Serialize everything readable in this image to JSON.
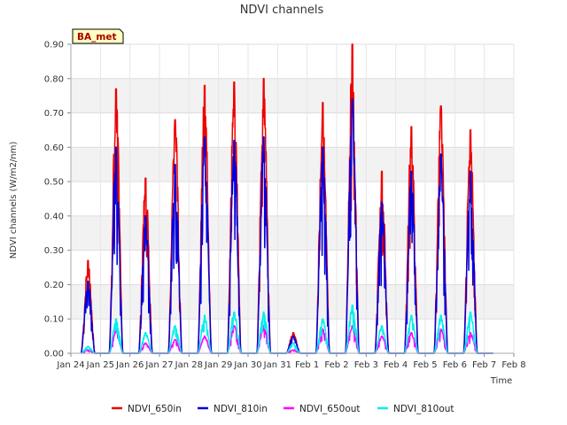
{
  "chart_data": {
    "type": "line",
    "title": "NDVI channels",
    "xlabel": "Time",
    "ylabel": "NDVI channels (W/m2/nm)",
    "ylim": [
      0,
      0.9
    ],
    "xlim": [
      0,
      15
    ],
    "grid": true,
    "y_ticks": [
      "0.00",
      "0.10",
      "0.20",
      "0.30",
      "0.40",
      "0.50",
      "0.60",
      "0.70",
      "0.80",
      "0.90"
    ],
    "x_ticks": [
      "Jan 24",
      "Jan 25",
      "Jan 26",
      "Jan 27",
      "Jan 28",
      "Jan 29",
      "Jan 30",
      "Jan 31",
      "Feb 1",
      "Feb 2",
      "Feb 3",
      "Feb 4",
      "Feb 5",
      "Feb 6",
      "Feb 7",
      "Feb 8"
    ],
    "badge": "BA_met",
    "legend_position": "bottom",
    "x_units": "days since Jan 24",
    "daily_peaks": {
      "days": [
        "Jan 24",
        "Jan 25",
        "Jan 26",
        "Jan 27",
        "Jan 28",
        "Jan 29",
        "Jan 30",
        "Jan 31",
        "Feb 1",
        "Feb 2",
        "Feb 3",
        "Feb 4",
        "Feb 5",
        "Feb 6",
        "Feb 7"
      ],
      "day_start": [
        0.35,
        1.3,
        2.3,
        3.3,
        4.3,
        5.3,
        6.3,
        7.3,
        8.3,
        9.3,
        10.3,
        11.3,
        12.3,
        13.3,
        14.3
      ]
    },
    "series": [
      {
        "name": "NDVI_650in",
        "color": "#ee0000",
        "peaks": [
          0.27,
          0.77,
          0.51,
          0.68,
          0.78,
          0.79,
          0.8,
          0.06,
          0.73,
          0.9,
          0.53,
          0.66,
          0.72,
          0.65
        ]
      },
      {
        "name": "NDVI_810in",
        "color": "#0000dd",
        "peaks": [
          0.21,
          0.6,
          0.4,
          0.55,
          0.63,
          0.62,
          0.63,
          0.05,
          0.6,
          0.74,
          0.44,
          0.53,
          0.58,
          0.53
        ]
      },
      {
        "name": "NDVI_650out",
        "color": "#ff00ff",
        "peaks": [
          0.01,
          0.07,
          0.03,
          0.04,
          0.05,
          0.08,
          0.08,
          0.01,
          0.07,
          0.08,
          0.05,
          0.06,
          0.07,
          0.06
        ]
      },
      {
        "name": "NDVI_810out",
        "color": "#00eeee",
        "peaks": [
          0.02,
          0.1,
          0.06,
          0.08,
          0.11,
          0.12,
          0.12,
          0.03,
          0.1,
          0.14,
          0.08,
          0.11,
          0.11,
          0.12
        ]
      }
    ]
  }
}
